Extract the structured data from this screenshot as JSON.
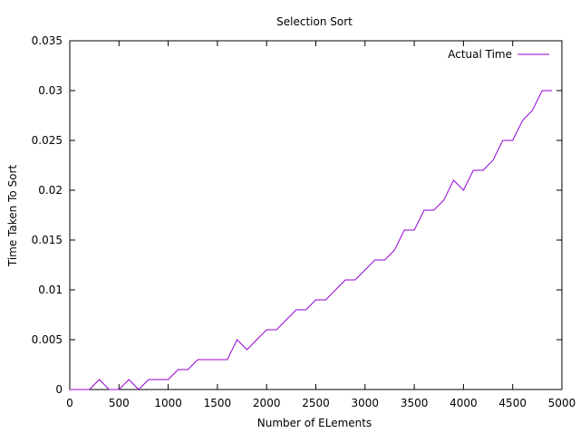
{
  "chart_data": {
    "type": "line",
    "title": "Selection Sort",
    "xlabel": "Number of ELements",
    "ylabel": "Time Taken To Sort",
    "xlim": [
      0,
      5000
    ],
    "ylim": [
      0,
      0.035
    ],
    "xticks": [
      0,
      500,
      1000,
      1500,
      2000,
      2500,
      3000,
      3500,
      4000,
      4500,
      5000
    ],
    "xtick_labels": [
      "0",
      "500",
      "1000",
      "1500",
      "2000",
      "2500",
      "3000",
      "3500",
      "4000",
      "4500",
      "5000"
    ],
    "yticks": [
      0,
      0.005,
      0.01,
      0.015,
      0.02,
      0.025,
      0.03,
      0.035
    ],
    "ytick_labels": [
      "0",
      "0.005",
      "0.01",
      "0.015",
      "0.02",
      "0.025",
      "0.03",
      "0.035"
    ],
    "grid": false,
    "legend_position": "top-right",
    "series": [
      {
        "name": "Actual Time",
        "color": "#9400d3",
        "x": [
          0,
          100,
          200,
          300,
          400,
          500,
          600,
          700,
          800,
          900,
          1000,
          1100,
          1200,
          1300,
          1400,
          1500,
          1600,
          1700,
          1800,
          1900,
          2000,
          2100,
          2200,
          2300,
          2400,
          2500,
          2600,
          2700,
          2800,
          2900,
          3000,
          3100,
          3200,
          3300,
          3400,
          3500,
          3600,
          3700,
          3800,
          3900,
          4000,
          4100,
          4200,
          4300,
          4400,
          4500,
          4600,
          4700,
          4800,
          4900
        ],
        "y": [
          0,
          0,
          0,
          0.001,
          0,
          0,
          0.001,
          0,
          0.001,
          0.001,
          0.001,
          0.002,
          0.002,
          0.003,
          0.003,
          0.003,
          0.003,
          0.005,
          0.004,
          0.005,
          0.006,
          0.006,
          0.007,
          0.008,
          0.008,
          0.009,
          0.009,
          0.01,
          0.011,
          0.011,
          0.012,
          0.013,
          0.013,
          0.014,
          0.016,
          0.016,
          0.018,
          0.018,
          0.019,
          0.021,
          0.02,
          0.022,
          0.022,
          0.023,
          0.025,
          0.025,
          0.027,
          0.028,
          0.03,
          0.03
        ]
      }
    ]
  }
}
